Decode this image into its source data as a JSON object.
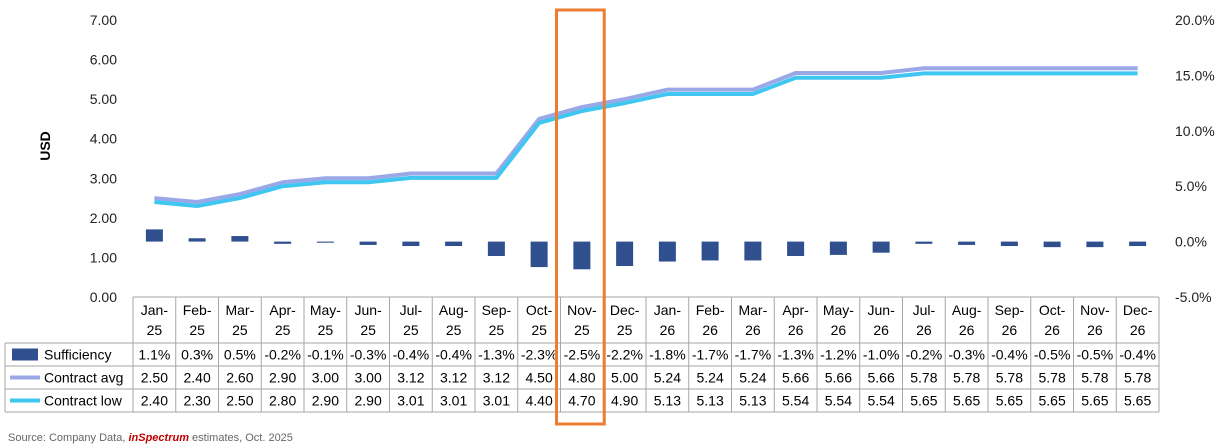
{
  "chart_data": {
    "type": "bar+line",
    "ylabel": "USD",
    "y_left": {
      "min": 0,
      "max": 7,
      "ticks": [
        "0.00",
        "1.00",
        "2.00",
        "3.00",
        "4.00",
        "5.00",
        "6.00",
        "7.00"
      ]
    },
    "y_right": {
      "min": -5,
      "max": 20,
      "ticks": [
        "-5.0%",
        "0.0%",
        "5.0%",
        "10.0%",
        "15.0%",
        "20.0%"
      ]
    },
    "categories": [
      [
        "Jan-",
        "25"
      ],
      [
        "Feb-",
        "25"
      ],
      [
        "Mar-",
        "25"
      ],
      [
        "Apr-",
        "25"
      ],
      [
        "May-",
        "25"
      ],
      [
        "Jun-",
        "25"
      ],
      [
        "Jul-",
        "25"
      ],
      [
        "Aug-",
        "25"
      ],
      [
        "Sep-",
        "25"
      ],
      [
        "Oct-",
        "25"
      ],
      [
        "Nov-",
        "25"
      ],
      [
        "Dec-",
        "25"
      ],
      [
        "Jan-",
        "26"
      ],
      [
        "Feb-",
        "26"
      ],
      [
        "Mar-",
        "26"
      ],
      [
        "Apr-",
        "26"
      ],
      [
        "May-",
        "26"
      ],
      [
        "Jun-",
        "26"
      ],
      [
        "Jul-",
        "26"
      ],
      [
        "Aug-",
        "26"
      ],
      [
        "Sep-",
        "26"
      ],
      [
        "Oct-",
        "26"
      ],
      [
        "Nov-",
        "26"
      ],
      [
        "Dec-",
        "26"
      ]
    ],
    "series": [
      {
        "name": "Sufficiency",
        "type": "bar",
        "axis": "right",
        "color": "#2f4f8f",
        "values": [
          1.1,
          0.3,
          0.5,
          -0.2,
          -0.1,
          -0.3,
          -0.4,
          -0.4,
          -1.3,
          -2.3,
          -2.5,
          -2.2,
          -1.8,
          -1.7,
          -1.7,
          -1.3,
          -1.2,
          -1.0,
          -0.2,
          -0.3,
          -0.4,
          -0.5,
          -0.5,
          -0.4
        ],
        "labels": [
          "1.1%",
          "0.3%",
          "0.5%",
          "-0.2%",
          "-0.1%",
          "-0.3%",
          "-0.4%",
          "-0.4%",
          "-1.3%",
          "-2.3%",
          "-2.5%",
          "-2.2%",
          "-1.8%",
          "-1.7%",
          "-1.7%",
          "-1.3%",
          "-1.2%",
          "-1.0%",
          "-0.2%",
          "-0.3%",
          "-0.4%",
          "-0.5%",
          "-0.5%",
          "-0.4%"
        ]
      },
      {
        "name": "Contract avg",
        "type": "line",
        "axis": "left",
        "color": "#9aa8e8",
        "values": [
          2.5,
          2.4,
          2.6,
          2.9,
          3.0,
          3.0,
          3.12,
          3.12,
          3.12,
          4.5,
          4.8,
          5.0,
          5.24,
          5.24,
          5.24,
          5.66,
          5.66,
          5.66,
          5.78,
          5.78,
          5.78,
          5.78,
          5.78,
          5.78
        ],
        "labels": [
          "2.50",
          "2.40",
          "2.60",
          "2.90",
          "3.00",
          "3.00",
          "3.12",
          "3.12",
          "3.12",
          "4.50",
          "4.80",
          "5.00",
          "5.24",
          "5.24",
          "5.24",
          "5.66",
          "5.66",
          "5.66",
          "5.78",
          "5.78",
          "5.78",
          "5.78",
          "5.78",
          "5.78"
        ]
      },
      {
        "name": "Contract low",
        "type": "line",
        "axis": "left",
        "color": "#3fc7f2",
        "values": [
          2.4,
          2.3,
          2.5,
          2.8,
          2.9,
          2.9,
          3.01,
          3.01,
          3.01,
          4.4,
          4.7,
          4.9,
          5.13,
          5.13,
          5.13,
          5.54,
          5.54,
          5.54,
          5.65,
          5.65,
          5.65,
          5.65,
          5.65,
          5.65
        ],
        "labels": [
          "2.40",
          "2.30",
          "2.50",
          "2.80",
          "2.90",
          "2.90",
          "3.01",
          "3.01",
          "3.01",
          "4.40",
          "4.70",
          "4.90",
          "5.13",
          "5.13",
          "5.13",
          "5.54",
          "5.54",
          "5.54",
          "5.65",
          "5.65",
          "5.65",
          "5.65",
          "5.65",
          "5.65"
        ]
      }
    ],
    "highlight": {
      "category_index": 10,
      "color": "#ed7d31"
    }
  },
  "source": {
    "prefix": "Source: Company Data, ",
    "brand_in": "in",
    "brand_rest": "Spectrum",
    "suffix": " estimates, Oct. 2025"
  }
}
